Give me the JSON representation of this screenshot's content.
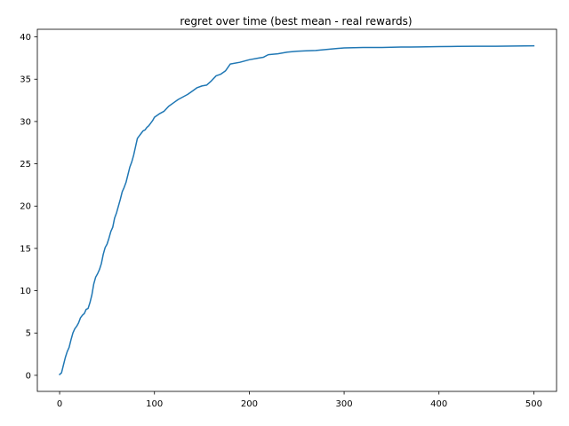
{
  "chart_data": {
    "type": "line",
    "title": "regret over time (best mean - real rewards)",
    "xlabel": "",
    "ylabel": "",
    "xlim": [
      -23.5,
      524
    ],
    "ylim": [
      -1.9,
      40.9
    ],
    "xticks": [
      0,
      100,
      200,
      300,
      400,
      500
    ],
    "yticks": [
      0,
      5,
      10,
      15,
      20,
      25,
      30,
      35,
      40
    ],
    "grid": false,
    "legend": "none",
    "series": [
      {
        "color": "#1f77b4",
        "x": [
          0,
          2,
          4,
          6,
          8,
          10,
          12,
          14,
          16,
          18,
          20,
          22,
          24,
          26,
          28,
          30,
          32,
          34,
          36,
          38,
          40,
          42,
          44,
          46,
          48,
          50,
          52,
          54,
          56,
          58,
          60,
          62,
          64,
          66,
          68,
          70,
          72,
          74,
          76,
          78,
          80,
          82,
          84,
          86,
          88,
          90,
          92,
          94,
          96,
          98,
          100,
          105,
          110,
          115,
          120,
          125,
          130,
          135,
          140,
          145,
          150,
          155,
          160,
          165,
          170,
          175,
          180,
          190,
          200,
          210,
          215,
          220,
          230,
          240,
          250,
          260,
          270,
          280,
          290,
          300,
          320,
          340,
          360,
          370,
          380,
          400,
          420,
          440,
          460,
          480,
          500
        ],
        "y": [
          0.1,
          0.3,
          1.2,
          2.1,
          2.8,
          3.3,
          4.2,
          5.0,
          5.5,
          5.8,
          6.2,
          6.8,
          7.1,
          7.3,
          7.8,
          7.9,
          8.6,
          9.5,
          10.8,
          11.6,
          12.0,
          12.5,
          13.2,
          14.3,
          15.1,
          15.5,
          16.2,
          17.0,
          17.5,
          18.6,
          19.2,
          20.0,
          20.8,
          21.7,
          22.2,
          22.8,
          23.7,
          24.6,
          25.2,
          26.0,
          27.0,
          28.0,
          28.3,
          28.6,
          28.9,
          29.0,
          29.3,
          29.5,
          29.8,
          30.1,
          30.5,
          30.9,
          31.2,
          31.8,
          32.2,
          32.6,
          32.9,
          33.2,
          33.6,
          34.0,
          34.2,
          34.3,
          34.8,
          35.4,
          35.6,
          36.0,
          36.8,
          37.0,
          37.3,
          37.5,
          37.6,
          37.9,
          38.0,
          38.2,
          38.3,
          38.35,
          38.4,
          38.5,
          38.6,
          38.7,
          38.75,
          38.75,
          38.8,
          38.8,
          38.82,
          38.85,
          38.88,
          38.9,
          38.9,
          38.92,
          38.95
        ]
      }
    ]
  }
}
